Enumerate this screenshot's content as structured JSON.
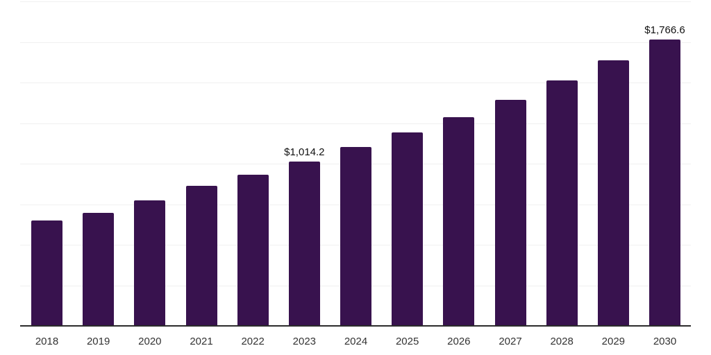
{
  "chart_data": {
    "type": "bar",
    "title": "",
    "xlabel": "",
    "ylabel": "",
    "categories": [
      "2018",
      "2019",
      "2020",
      "2021",
      "2022",
      "2023",
      "2024",
      "2025",
      "2026",
      "2027",
      "2028",
      "2029",
      "2030"
    ],
    "values": [
      650,
      698,
      772,
      862,
      933,
      1014.2,
      1104,
      1192,
      1288,
      1395,
      1511,
      1635,
      1766.6
    ],
    "ylim": [
      0,
      2000
    ],
    "gridline_step": 250,
    "grid": "horizontal-only",
    "legend": "none",
    "y_axis_labels_visible": false,
    "data_labels": [
      {
        "category": "2023",
        "index": 5,
        "text": "$1,014.2"
      },
      {
        "category": "2030",
        "index": 12,
        "text": "$1,766.6"
      }
    ],
    "colors": {
      "bar": "#38124E",
      "gridline": "#F0F0F0",
      "axis": "#2B2B2B",
      "tick_label": "#333333",
      "data_label": "#111111",
      "background": "#FFFFFF"
    }
  }
}
